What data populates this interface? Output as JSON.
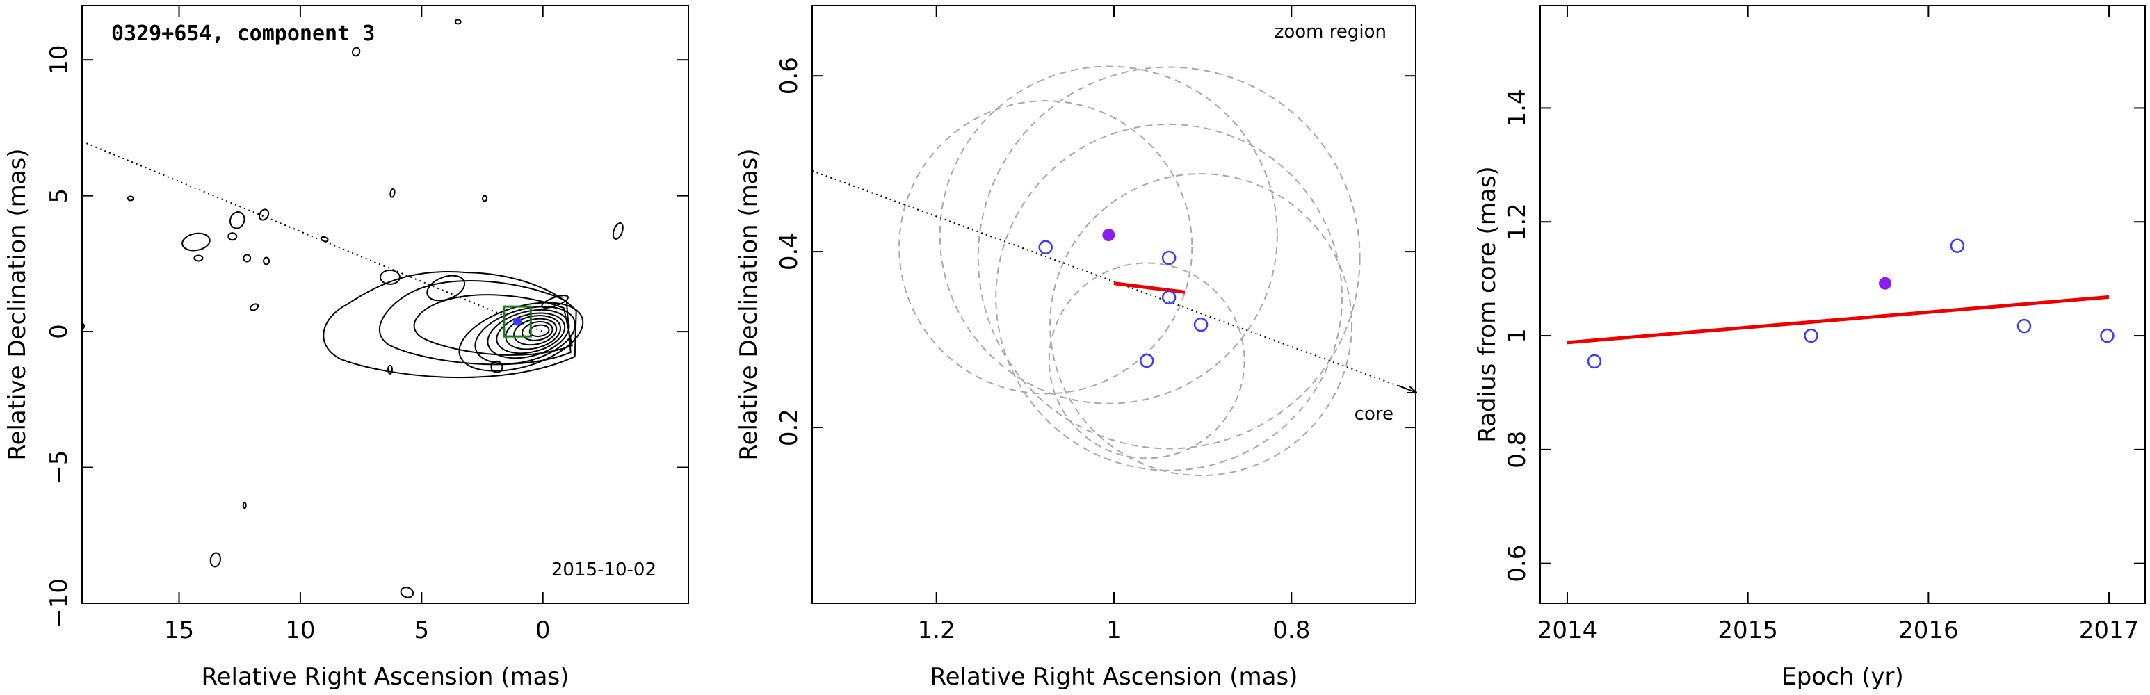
{
  "chart_data": [
    {
      "type": "contour",
      "title": "0329+654, component 3",
      "xlabel": "Relative Right Ascension (mas)",
      "ylabel": "Relative Declination (mas)",
      "xlim": [
        19,
        -6
      ],
      "ylim": [
        -10,
        12
      ],
      "xticks": [
        15,
        10,
        5,
        0
      ],
      "yticks": [
        -10,
        -5,
        0,
        5,
        10
      ],
      "xtick_labels": [
        "15",
        "10",
        "5",
        "0"
      ],
      "ytick_labels": [
        "−10",
        "−5",
        "0",
        "5",
        "10"
      ],
      "annotation": "2015-10-02",
      "jet_axis": {
        "x1": 19,
        "y1": 7.0,
        "x2": 0,
        "y2": 0
      },
      "component_box": {
        "x": 1.05,
        "y": 0.37,
        "half_size": 0.55
      },
      "contour_peak": {
        "x": 0,
        "y": 0
      }
    },
    {
      "type": "scatter",
      "xlabel": "Relative Right Ascension (mas)",
      "ylabel": "Relative Declination (mas)",
      "xlim": [
        1.34,
        0.66
      ],
      "ylim": [
        0.0,
        0.68
      ],
      "xticks": [
        1.2,
        1.0,
        0.8
      ],
      "yticks": [
        0.2,
        0.4,
        0.6
      ],
      "xtick_labels": [
        "1.2",
        "1",
        "0.8"
      ],
      "ytick_labels": [
        "0.2",
        "0.4",
        "0.6"
      ],
      "label_top": "zoom region",
      "label_core": "core",
      "points_open": [
        {
          "x": 1.077,
          "y": 0.405
        },
        {
          "x": 0.938,
          "y": 0.393
        },
        {
          "x": 0.938,
          "y": 0.348
        },
        {
          "x": 0.902,
          "y": 0.317
        },
        {
          "x": 0.963,
          "y": 0.276
        }
      ],
      "point_filled": {
        "x": 1.006,
        "y": 0.419
      },
      "error_circles": [
        {
          "x": 1.077,
          "y": 0.405,
          "r": 0.165
        },
        {
          "x": 0.938,
          "y": 0.393,
          "r": 0.215
        },
        {
          "x": 0.938,
          "y": 0.348,
          "r": 0.195
        },
        {
          "x": 0.902,
          "y": 0.317,
          "r": 0.17
        },
        {
          "x": 0.963,
          "y": 0.276,
          "r": 0.11
        },
        {
          "x": 1.006,
          "y": 0.419,
          "r": 0.19
        }
      ],
      "fit_line": {
        "x1": 1.0,
        "y1": 0.364,
        "x2": 0.92,
        "y2": 0.354
      },
      "jet_axis": {
        "x1": 1.34,
        "y1": 0.492,
        "x2": 0.66,
        "y2": 0.24
      }
    },
    {
      "type": "scatter",
      "xlabel": "Epoch (yr)",
      "ylabel": "Radius from core (mas)",
      "xlim": [
        2013.85,
        2017.2
      ],
      "ylim": [
        0.53,
        1.58
      ],
      "xticks": [
        2014,
        2015,
        2016,
        2017
      ],
      "yticks": [
        0.6,
        0.8,
        1.0,
        1.2,
        1.4
      ],
      "xtick_labels": [
        "2014",
        "2015",
        "2016",
        "2017"
      ],
      "ytick_labels": [
        "0.6",
        "0.8",
        "1",
        "1.2",
        "1.4"
      ],
      "points_open": [
        {
          "x": 2014.15,
          "y": 0.955
        },
        {
          "x": 2015.35,
          "y": 1.0
        },
        {
          "x": 2016.16,
          "y": 1.158
        },
        {
          "x": 2016.53,
          "y": 1.017
        },
        {
          "x": 2016.99,
          "y": 1.0
        }
      ],
      "point_filled": {
        "x": 2015.76,
        "y": 1.092
      },
      "fit_line": {
        "x1": 2014.0,
        "y1": 0.988,
        "x2": 2017.0,
        "y2": 1.068
      }
    }
  ],
  "colors": {
    "open_marker": "#3b3bff",
    "filled_marker": "#8a1ef0",
    "fit_line": "#ee0000",
    "error_circle": "#a8a8a8",
    "component_box": "#1b7a1b",
    "axis": "#000000"
  }
}
